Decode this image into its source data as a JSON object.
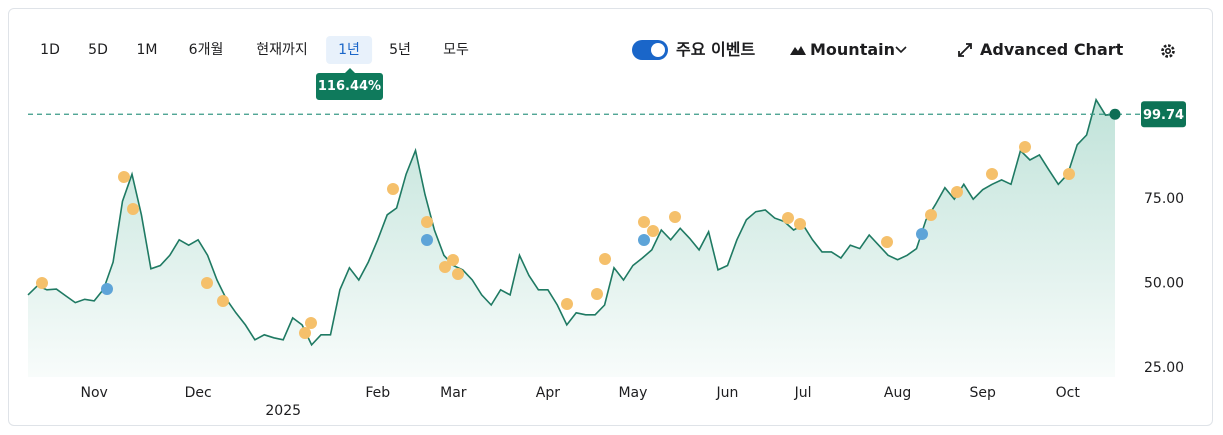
{
  "range_selector": {
    "options": [
      "1D",
      "5D",
      "1M",
      "6개월",
      "현재까지",
      "1년",
      "5년",
      "모두"
    ],
    "selected": 5,
    "change": "116.44%"
  },
  "toolbar": {
    "events_toggle": "주요 이벤트",
    "chart_style": "Mountain",
    "advanced": "Advanced Chart"
  },
  "chart_data": {
    "type": "area",
    "color": "#1f7a63",
    "values": [
      46.3,
      49,
      47.8,
      48,
      46,
      44,
      45,
      44.5,
      48,
      56,
      74,
      82,
      70,
      54,
      55,
      58,
      62.6,
      61,
      62.6,
      58,
      50.7,
      45,
      41,
      37.4,
      33,
      34.5,
      33.6,
      33,
      39.5,
      37.4,
      31.5,
      34.5,
      34.5,
      47.8,
      54.3,
      50.7,
      56,
      62.6,
      70,
      72,
      82,
      89,
      76,
      65.5,
      58,
      55,
      53.7,
      50.7,
      46.3,
      43.3,
      47.8,
      46.3,
      58,
      52,
      47.8,
      47.8,
      43.3,
      37.4,
      41,
      40.4,
      40.4,
      43.3,
      54.3,
      50.7,
      55,
      57.2,
      59.6,
      65.5,
      62.6,
      66,
      63,
      59.6,
      65,
      53.7,
      55,
      62.6,
      68.5,
      70.9,
      71.4,
      69,
      68,
      65.5,
      67,
      62.6,
      59,
      59,
      57.2,
      61,
      60,
      64,
      61,
      58,
      56.7,
      58,
      60,
      68.5,
      73,
      78,
      74.6,
      79,
      74.6,
      77.4,
      79,
      80.3,
      79,
      89,
      86.2,
      87.7,
      83.3,
      79,
      82,
      90.7,
      93.6,
      104,
      99.5,
      99.74
    ],
    "ylim": [
      22,
      107
    ],
    "yticks": [
      {
        "value": 25,
        "label": "25.00"
      },
      {
        "value": 50,
        "label": "50.00"
      },
      {
        "value": 75,
        "label": "75.00"
      }
    ],
    "xticks": [
      {
        "value": 7,
        "label": "Nov"
      },
      {
        "value": 18,
        "label": "Dec"
      },
      {
        "value": 37,
        "label": "Feb"
      },
      {
        "value": 45,
        "label": "Mar"
      },
      {
        "value": 55,
        "label": "Apr"
      },
      {
        "value": 64,
        "label": "May"
      },
      {
        "value": 74,
        "label": "Jun"
      },
      {
        "value": 82,
        "label": "Jul"
      },
      {
        "value": 92,
        "label": "Aug"
      },
      {
        "value": 101,
        "label": "Sep"
      },
      {
        "value": 110,
        "label": "Oct"
      }
    ],
    "year_labels": [
      {
        "value": 27,
        "label": "2025"
      }
    ],
    "last_value": 99.74,
    "grid": true
  }
}
